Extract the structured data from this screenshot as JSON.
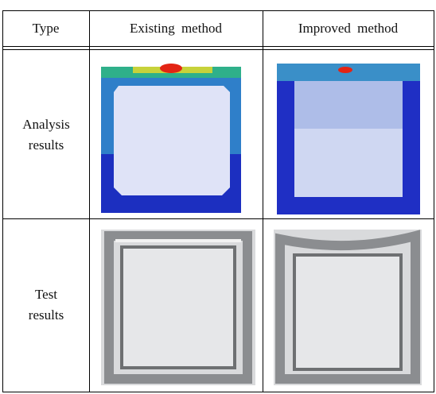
{
  "table": {
    "header": [
      "Type",
      "Existing method",
      "Improved method"
    ],
    "rows": [
      [
        "Analysis results"
      ],
      [
        "Test results"
      ]
    ]
  }
}
